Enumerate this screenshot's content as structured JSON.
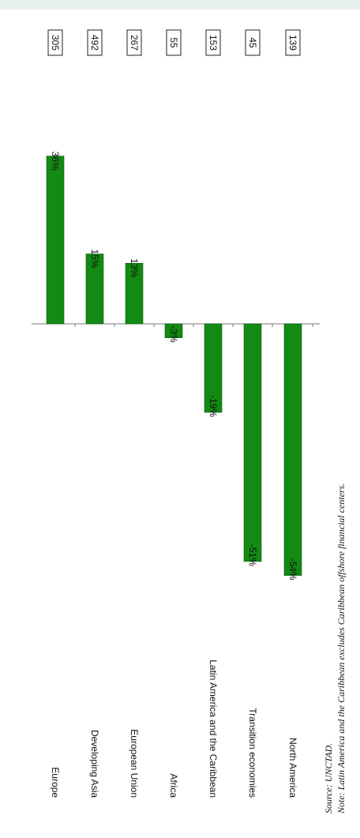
{
  "chart_data": {
    "type": "bar",
    "orientation": "rotated-90",
    "categories": [
      "Europe",
      "Developing Asia",
      "European Union",
      "Africa",
      "Latin America and the Caribbean",
      "Transition economies",
      "North America"
    ],
    "values": [
      36,
      15,
      13,
      -3,
      -19,
      -51,
      -54
    ],
    "value_labels": [
      "36%",
      "15%",
      "13%",
      "-3%",
      "-19%",
      "-51%",
      "-54%"
    ],
    "boxed_values": [
      "305",
      "492",
      "267",
      "55",
      "153",
      "45",
      "139"
    ],
    "bar_color": "#138a13",
    "ylim": [
      -54,
      36
    ]
  },
  "footnote": {
    "source": "Source: UNCTAD.",
    "note": "Note: Latin America and the Caribbean excludes Caribbean offshore financial centers."
  }
}
